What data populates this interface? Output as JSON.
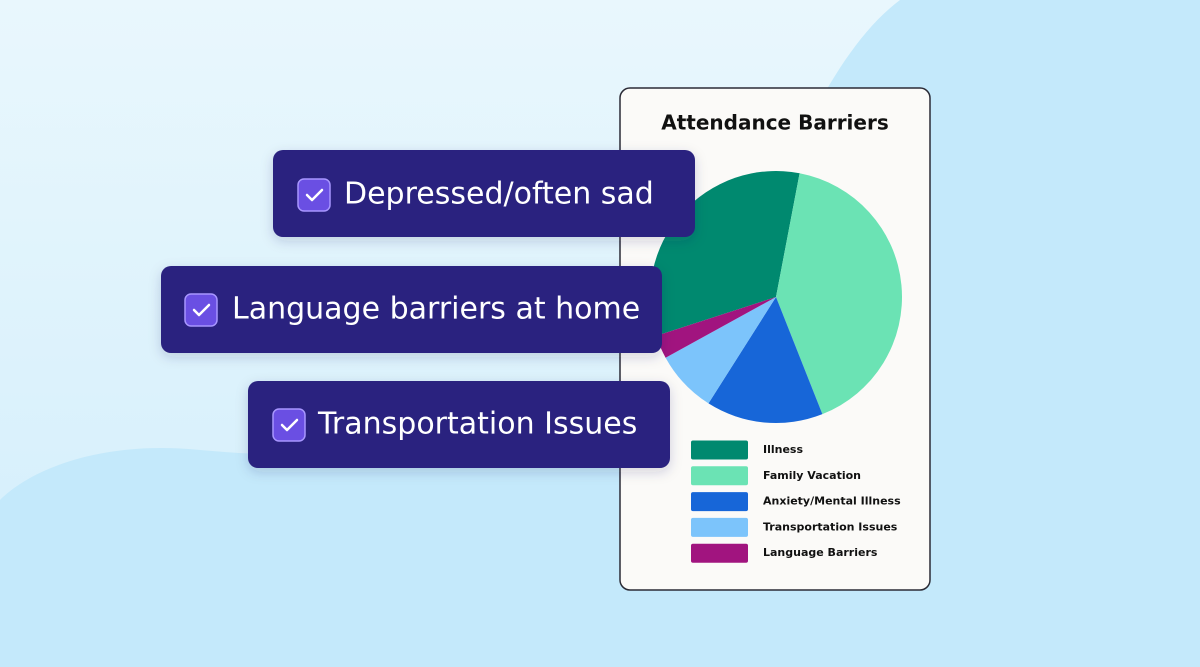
{
  "chart_data": {
    "type": "pie",
    "title": "Attendance Barriers",
    "categories": [
      "Illness",
      "Family Vacation",
      "Anxiety/Mental Illness",
      "Transportation Issues",
      "Language Barriers"
    ],
    "values": [
      33,
      41,
      15,
      8,
      3
    ],
    "colors": [
      "#00896f",
      "#6be3b4",
      "#1766d8",
      "#7cc4fb",
      "#a1147f"
    ]
  },
  "tags": [
    "Depressed/often sad",
    "Language barriers at home",
    "Transportation Issues"
  ]
}
